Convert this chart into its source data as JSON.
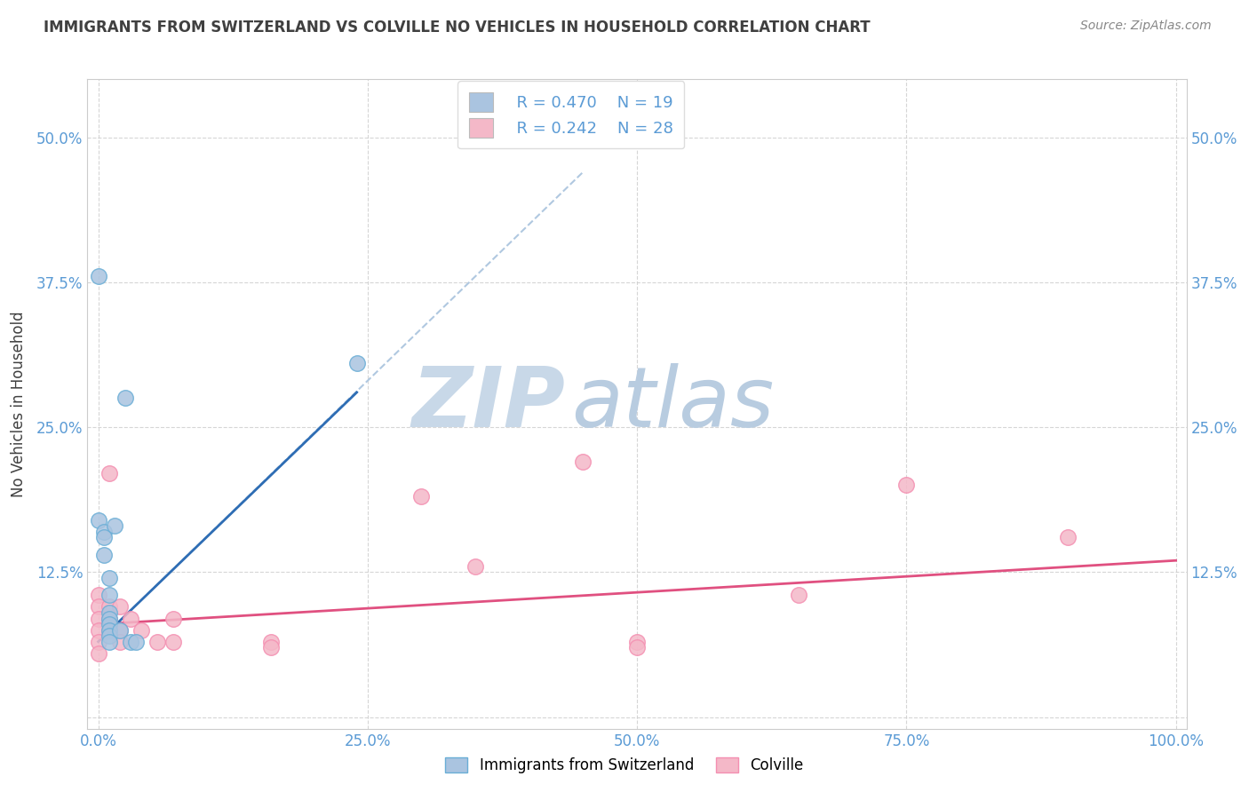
{
  "title": "IMMIGRANTS FROM SWITZERLAND VS COLVILLE NO VEHICLES IN HOUSEHOLD CORRELATION CHART",
  "source": "Source: ZipAtlas.com",
  "ylabel": "No Vehicles in Household",
  "watermark_zip": "ZIP",
  "watermark_atlas": "atlas",
  "legend_entries": [
    {
      "label": "Immigrants from Switzerland",
      "R": "R = 0.470",
      "N": "N = 19",
      "color": "#aac4e0"
    },
    {
      "label": "Colville",
      "R": "R = 0.242",
      "N": "N = 28",
      "color": "#f4b8c8"
    }
  ],
  "blue_scatter": [
    [
      0.0,
      38.0
    ],
    [
      0.0,
      17.0
    ],
    [
      0.5,
      16.0
    ],
    [
      0.5,
      15.5
    ],
    [
      0.5,
      14.0
    ],
    [
      1.0,
      12.0
    ],
    [
      1.0,
      10.5
    ],
    [
      1.0,
      9.0
    ],
    [
      1.0,
      8.5
    ],
    [
      1.0,
      8.0
    ],
    [
      1.0,
      7.5
    ],
    [
      1.0,
      7.0
    ],
    [
      1.0,
      6.5
    ],
    [
      1.5,
      16.5
    ],
    [
      2.0,
      7.5
    ],
    [
      2.5,
      27.5
    ],
    [
      3.0,
      6.5
    ],
    [
      3.5,
      6.5
    ],
    [
      24.0,
      30.5
    ]
  ],
  "pink_scatter": [
    [
      0.0,
      10.5
    ],
    [
      0.0,
      9.5
    ],
    [
      0.0,
      8.5
    ],
    [
      0.0,
      7.5
    ],
    [
      0.0,
      6.5
    ],
    [
      0.0,
      5.5
    ],
    [
      1.0,
      21.0
    ],
    [
      1.0,
      9.5
    ],
    [
      1.0,
      8.5
    ],
    [
      1.0,
      7.5
    ],
    [
      2.0,
      9.5
    ],
    [
      2.0,
      7.5
    ],
    [
      2.0,
      6.5
    ],
    [
      3.0,
      8.5
    ],
    [
      4.0,
      7.5
    ],
    [
      5.5,
      6.5
    ],
    [
      7.0,
      8.5
    ],
    [
      7.0,
      6.5
    ],
    [
      16.0,
      6.5
    ],
    [
      16.0,
      6.0
    ],
    [
      30.0,
      19.0
    ],
    [
      35.0,
      13.0
    ],
    [
      45.0,
      22.0
    ],
    [
      50.0,
      6.5
    ],
    [
      50.0,
      6.0
    ],
    [
      65.0,
      10.5
    ],
    [
      75.0,
      20.0
    ],
    [
      90.0,
      15.5
    ]
  ],
  "blue_line": [
    [
      0.0,
      6.5
    ],
    [
      24.0,
      28.0
    ]
  ],
  "blue_line_dashed": [
    [
      0.0,
      6.5
    ],
    [
      45.0,
      47.0
    ]
  ],
  "pink_line": [
    [
      0.0,
      8.0
    ],
    [
      100.0,
      13.5
    ]
  ],
  "xlim": [
    -1.0,
    101.0
  ],
  "ylim": [
    -1.0,
    55.0
  ],
  "xticks": [
    0.0,
    25.0,
    50.0,
    75.0,
    100.0
  ],
  "xticklabels": [
    "0.0%",
    "25.0%",
    "50.0%",
    "75.0%",
    "100.0%"
  ],
  "yticks": [
    0.0,
    12.5,
    25.0,
    37.5,
    50.0
  ],
  "yticklabels_left": [
    "",
    "12.5%",
    "25.0%",
    "37.5%",
    "50.0%"
  ],
  "yticklabels_right": [
    "",
    "12.5%",
    "25.0%",
    "37.5%",
    "50.0%"
  ],
  "grid_color": "#cccccc",
  "background_color": "#ffffff",
  "title_color": "#404040",
  "axis_label_color": "#404040",
  "tick_label_color": "#5b9bd5",
  "source_color": "#888888",
  "blue_scatter_color": "#aac4e0",
  "blue_scatter_edge": "#6aaed6",
  "pink_scatter_color": "#f4b8c8",
  "pink_scatter_edge": "#f48fb1",
  "blue_line_color": "#2e6db4",
  "blue_dashed_color": "#b0c8e0",
  "pink_line_color": "#e05080",
  "watermark_color_zip": "#c8d8e8",
  "watermark_color_atlas": "#b8cce0"
}
